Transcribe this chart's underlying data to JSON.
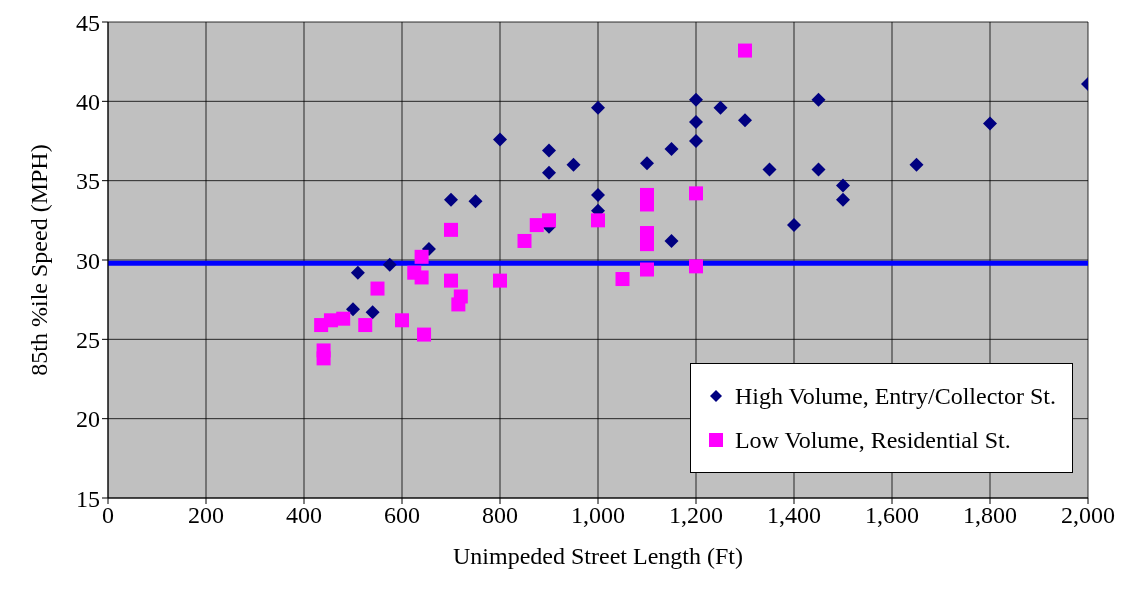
{
  "chart_data": {
    "type": "scatter",
    "xlabel": "Unimpeded  Street  Length  (Ft)",
    "ylabel": "85th  %ile  Speed  (MPH)",
    "xlim": [
      0,
      2000
    ],
    "xticks": [
      0,
      200,
      400,
      600,
      800,
      {
        "value": 1000,
        "label": "1,000"
      },
      {
        "value": 1200,
        "label": "1,200"
      },
      {
        "value": 1400,
        "label": "1,400"
      },
      {
        "value": 1600,
        "label": "1,600"
      },
      {
        "value": 1800,
        "label": "1,800"
      },
      {
        "value": 2000,
        "label": "2,000"
      }
    ],
    "ylim": [
      15,
      45
    ],
    "yticks": [
      15,
      20,
      25,
      30,
      35,
      40,
      45
    ],
    "grid": true,
    "legend": "bottom right",
    "ref_lines": [
      {
        "axis": "y",
        "value": 29.8,
        "color": "#0000ff",
        "line_style": "solid"
      }
    ],
    "series": [
      {
        "name": "High Volume, Entry/Collector St.",
        "color": "#000080",
        "marker": "diamond",
        "x": [
          500,
          510,
          540,
          575,
          655,
          700,
          750,
          800,
          900,
          900,
          900,
          950,
          1000,
          1000,
          1000,
          1100,
          1150,
          1150,
          1200,
          1200,
          1200,
          1250,
          1300,
          1350,
          1400,
          1450,
          1450,
          1500,
          1500,
          1650,
          1800,
          2000
        ],
        "values": [
          26.9,
          29.2,
          26.7,
          29.7,
          30.7,
          33.8,
          33.7,
          37.6,
          36.9,
          35.5,
          32.1,
          36.0,
          39.6,
          34.1,
          33.1,
          36.1,
          37.0,
          31.2,
          40.1,
          38.7,
          37.5,
          39.6,
          38.8,
          35.7,
          32.2,
          40.1,
          35.7,
          34.7,
          33.8,
          36.0,
          38.6,
          41.1
        ]
      },
      {
        "name": "Low Volume, Residential St.",
        "color": "#ff00ff",
        "marker": "square",
        "x": [
          435,
          440,
          440,
          455,
          480,
          525,
          550,
          600,
          625,
          640,
          640,
          645,
          700,
          700,
          715,
          720,
          800,
          850,
          875,
          900,
          1000,
          1050,
          1100,
          1100,
          1100,
          1100,
          1100,
          1200,
          1200,
          1300
        ],
        "values": [
          25.9,
          24.3,
          23.8,
          26.2,
          26.3,
          25.9,
          28.2,
          26.2,
          29.2,
          30.2,
          28.9,
          25.3,
          31.9,
          28.7,
          27.2,
          27.7,
          28.7,
          31.2,
          32.2,
          32.5,
          32.5,
          28.8,
          34.1,
          33.5,
          31.7,
          31.0,
          29.4,
          34.2,
          29.6,
          43.2
        ]
      }
    ]
  }
}
